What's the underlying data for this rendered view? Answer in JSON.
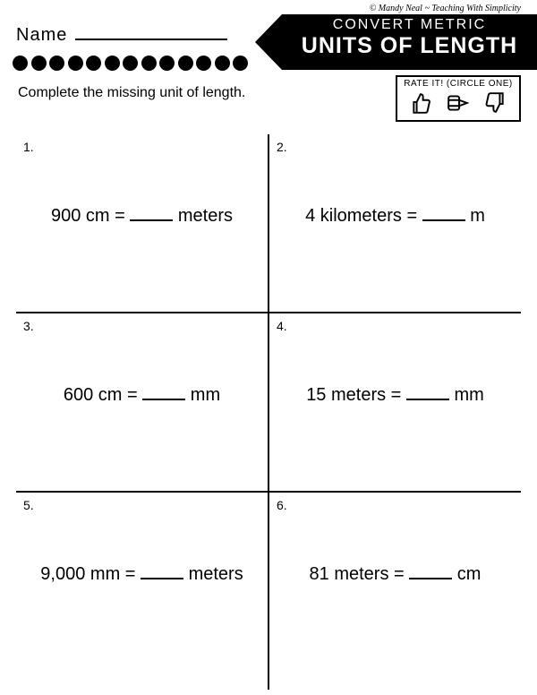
{
  "copyright": "© Mandy Neal ~ Teaching With Simplicity",
  "name_label": "Name",
  "title_small": "CONVERT METRIC",
  "title_big": "UNITS OF LENGTH",
  "instruction": "Complete the missing unit of length.",
  "rate_label": "Rate It! (Circle One)",
  "dot_count": 13,
  "questions": [
    {
      "num": "1.",
      "before": "900 cm = ",
      "after": " meters"
    },
    {
      "num": "2.",
      "before": "4 kilometers = ",
      "after": " m"
    },
    {
      "num": "3.",
      "before": "600 cm = ",
      "after": " mm"
    },
    {
      "num": "4.",
      "before": "15 meters = ",
      "after": " mm"
    },
    {
      "num": "5.",
      "before": "9,000 mm = ",
      "after": " meters"
    },
    {
      "num": "6.",
      "before": "81 meters = ",
      "after": " cm"
    }
  ]
}
